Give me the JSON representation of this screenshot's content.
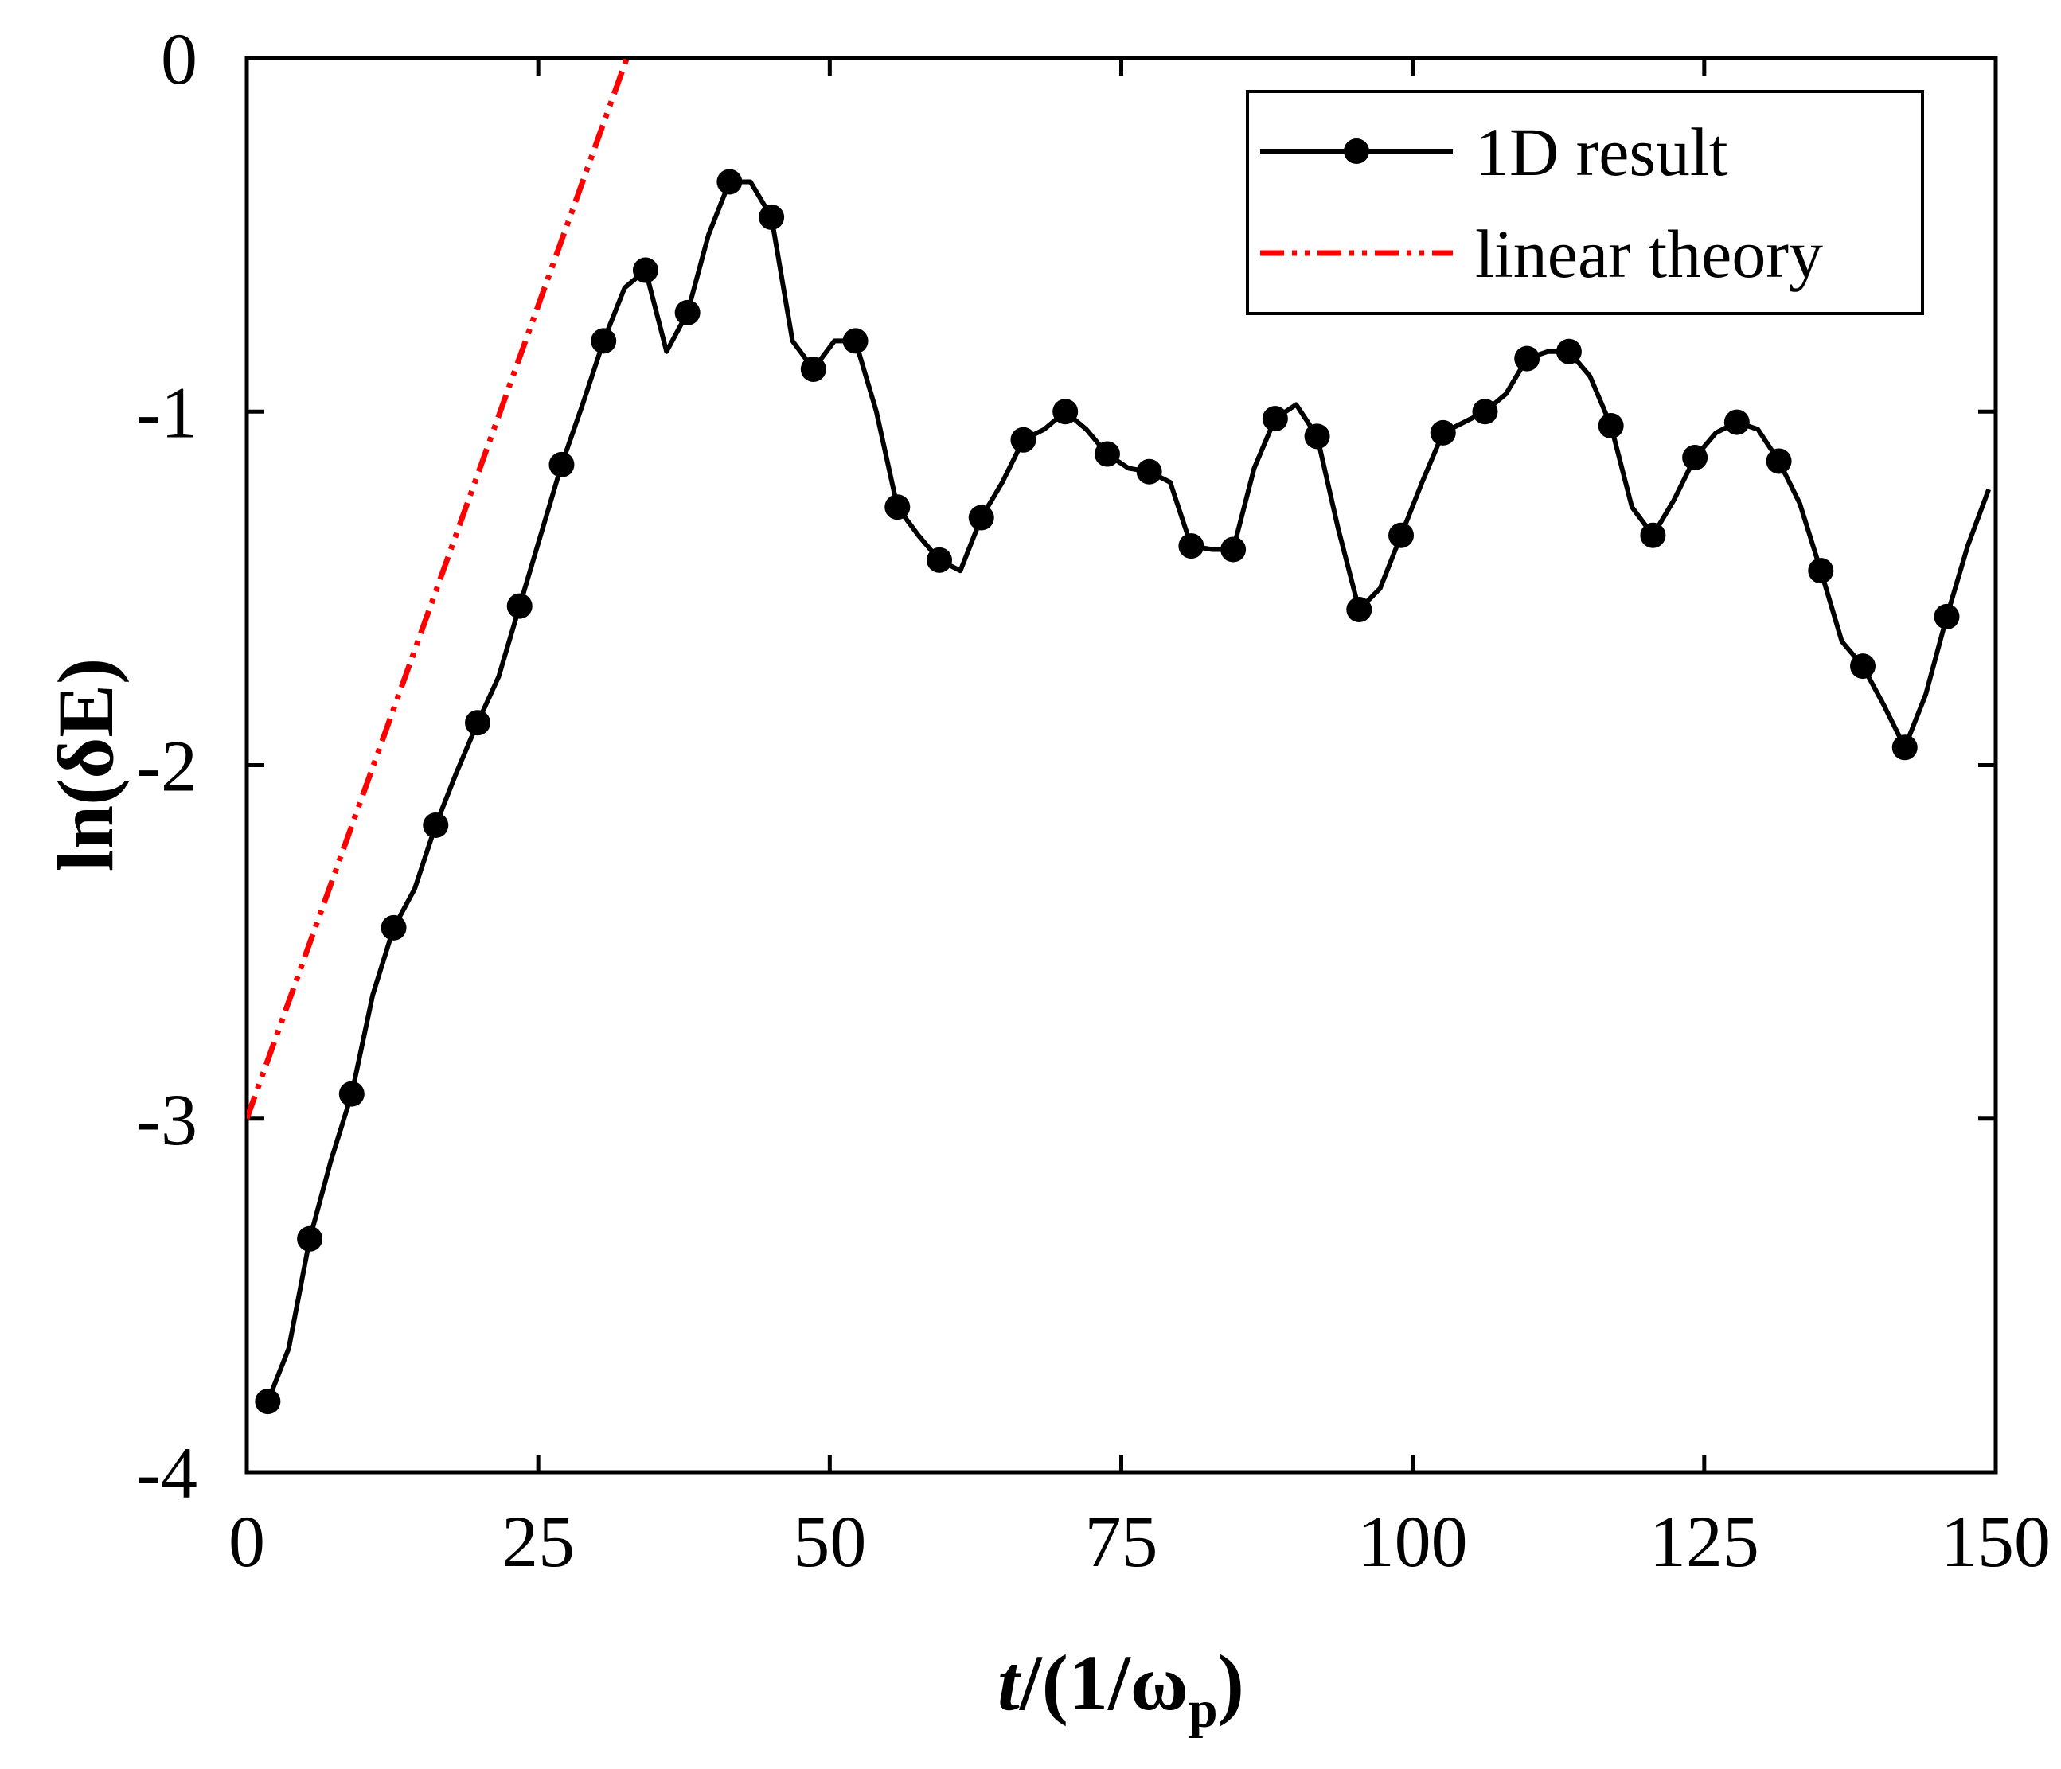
{
  "chart_data": {
    "type": "line",
    "title": "",
    "xlabel": {
      "italic": "t",
      "rest": "/(1/ω",
      "subscript": "p",
      "close": ")"
    },
    "ylabel": "ln(δE)",
    "xlim": [
      0,
      150
    ],
    "ylim": [
      -4,
      0
    ],
    "xticks": [
      0,
      25,
      50,
      75,
      100,
      125,
      150
    ],
    "xtick_labels": [
      "0",
      "25",
      "50",
      "75",
      "100",
      "125",
      "150"
    ],
    "yticks": [
      0,
      -1,
      -2,
      -3,
      -4
    ],
    "ytick_labels": [
      "0",
      "-1",
      "-2",
      "-3",
      "-4"
    ],
    "grid": false,
    "legend_position": "top-right",
    "series": [
      {
        "name": "1D result",
        "color": "#000000",
        "style": "solid-with-markers",
        "x": [
          1.8,
          3.6,
          5.4,
          7.2,
          9.0,
          10.8,
          12.6,
          14.4,
          16.2,
          18.0,
          19.8,
          21.6,
          23.4,
          25.2,
          27.0,
          28.8,
          30.6,
          32.4,
          34.2,
          36.0,
          37.8,
          39.6,
          41.4,
          43.2,
          45.0,
          46.8,
          48.6,
          50.4,
          52.2,
          54.0,
          55.8,
          57.6,
          59.4,
          61.2,
          63.0,
          64.8,
          66.6,
          68.4,
          70.2,
          72.0,
          73.8,
          75.6,
          77.4,
          79.2,
          81.0,
          82.8,
          84.6,
          86.4,
          88.2,
          90.0,
          91.8,
          93.6,
          95.4,
          97.2,
          99.0,
          100.8,
          102.6,
          104.4,
          106.2,
          108.0,
          109.8,
          111.6,
          113.4,
          115.2,
          117.0,
          118.8,
          120.6,
          122.4,
          124.2,
          126.0,
          127.8,
          129.6,
          131.4,
          133.2,
          135.0,
          136.8,
          138.6,
          140.4,
          142.2,
          144.0,
          145.8,
          147.6,
          149.4
        ],
        "y": [
          -3.8,
          -3.65,
          -3.34,
          -3.12,
          -2.93,
          -2.65,
          -2.46,
          -2.35,
          -2.17,
          -2.02,
          -1.88,
          -1.75,
          -1.55,
          -1.35,
          -1.15,
          -0.98,
          -0.8,
          -0.65,
          -0.6,
          -0.83,
          -0.72,
          -0.5,
          -0.35,
          -0.35,
          -0.45,
          -0.8,
          -0.88,
          -0.8,
          -0.8,
          -1.0,
          -1.27,
          -1.35,
          -1.42,
          -1.45,
          -1.3,
          -1.2,
          -1.08,
          -1.05,
          -1.0,
          -1.05,
          -1.12,
          -1.16,
          -1.17,
          -1.2,
          -1.38,
          -1.39,
          -1.39,
          -1.16,
          -1.02,
          -0.98,
          -1.07,
          -1.33,
          -1.56,
          -1.5,
          -1.35,
          -1.2,
          -1.06,
          -1.03,
          -1.0,
          -0.95,
          -0.85,
          -0.83,
          -0.83,
          -0.9,
          -1.04,
          -1.27,
          -1.35,
          -1.25,
          -1.13,
          -1.06,
          -1.03,
          -1.05,
          -1.14,
          -1.26,
          -1.45,
          -1.65,
          -1.72,
          -1.83,
          -1.95,
          -1.8,
          -1.58,
          -1.38,
          -1.22
        ],
        "marker_x": [
          1.8,
          5.4,
          9.0,
          12.6,
          16.2,
          19.8,
          23.4,
          27.0,
          30.6,
          34.2,
          37.8,
          41.4,
          45.0,
          48.6,
          52.2,
          55.8,
          59.4,
          63.0,
          66.6,
          70.2,
          73.8,
          77.4,
          81.0,
          84.6,
          88.2,
          91.8,
          95.4,
          99.0,
          102.6,
          106.2,
          109.8,
          113.4,
          117.0,
          120.6,
          124.2,
          127.8,
          131.4,
          135.0,
          138.6,
          142.2,
          145.8
        ],
        "marker_y": [
          -3.8,
          -3.34,
          -2.93,
          -2.46,
          -2.17,
          -1.88,
          -1.55,
          -1.15,
          -0.8,
          -0.6,
          -0.72,
          -0.35,
          -0.45,
          -0.88,
          -0.8,
          -1.27,
          -1.42,
          -1.3,
          -1.08,
          -1.0,
          -1.12,
          -1.17,
          -1.38,
          -1.39,
          -1.02,
          -1.07,
          -1.56,
          -1.35,
          -1.06,
          -1.0,
          -0.85,
          -0.83,
          -1.04,
          -1.35,
          -1.13,
          -1.03,
          -1.14,
          -1.45,
          -1.72,
          -1.95,
          -1.58
        ]
      },
      {
        "name": "linear theory",
        "color": "#ff0000",
        "style": "dash-dot-dot",
        "x": [
          0,
          32.6
        ],
        "y": [
          -3.0,
          0.0
        ]
      }
    ]
  }
}
